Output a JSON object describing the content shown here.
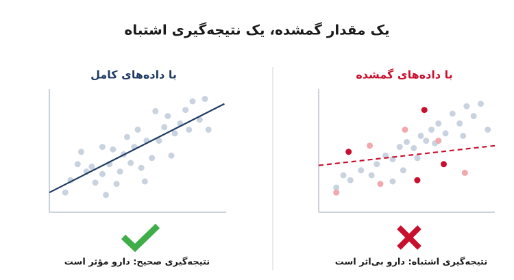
{
  "title": "یک مقدار گمشده، یک نتیجه‌گیری اشتباه",
  "chart_data": [
    {
      "type": "scatter",
      "title": "با داده‌های کامل",
      "xlim": [
        0,
        100
      ],
      "ylim": [
        0,
        100
      ],
      "series": [
        {
          "color": "#c9d3df",
          "x": [
            9,
            12,
            16,
            18,
            21,
            24,
            26,
            30,
            30,
            32,
            34,
            36,
            38,
            40,
            42,
            44,
            46,
            48,
            50,
            52,
            54,
            55,
            58,
            60,
            62,
            65,
            67,
            69,
            71,
            74,
            77,
            79,
            81,
            85,
            88,
            90
          ],
          "values": [
            16,
            26,
            39,
            49,
            33,
            37,
            24,
            53,
            31,
            14,
            39,
            51,
            23,
            33,
            47,
            61,
            40,
            53,
            67,
            36,
            25,
            58,
            44,
            82,
            58,
            69,
            78,
            46,
            64,
            72,
            83,
            67,
            90,
            75,
            92,
            67
          ]
        }
      ],
      "trend": {
        "color": "#1f3b63",
        "x": [
          0,
          99
        ],
        "values": [
          16,
          88
        ]
      },
      "caption": "نتیجه‌گیری صحیح: دارو مؤثر است"
    },
    {
      "type": "scatter",
      "title": "با داده‌های گمشده",
      "xlim": [
        0,
        100
      ],
      "ylim": [
        0,
        100
      ],
      "series": [
        {
          "color": "#c9d3df",
          "x": [
            10,
            14,
            18,
            24,
            30,
            33,
            38,
            42,
            46,
            50,
            54,
            58,
            61,
            64,
            68,
            72,
            76,
            80,
            84,
            88,
            92,
            96,
            42,
            48,
            56,
            66,
            82
          ],
          "values": [
            20,
            30,
            26,
            34,
            30,
            39,
            46,
            43,
            53,
            57,
            52,
            62,
            58,
            67,
            72,
            64,
            80,
            72,
            86,
            78,
            88,
            67,
            25,
            34,
            44,
            56,
            62
          ]
        },
        {
          "color": "#f2a9ae",
          "x": [
            10,
            29,
            35,
            49,
            68,
            83
          ],
          "values": [
            16,
            54,
            23,
            67,
            58,
            32
          ]
        },
        {
          "color": "#c8102e",
          "x": [
            17,
            60,
            56,
            71
          ],
          "values": [
            49,
            83,
            26,
            39
          ]
        }
      ],
      "trend": {
        "color": "#c8102e",
        "x": [
          0,
          100
        ],
        "values": [
          38,
          54
        ]
      },
      "caption": "نتیجه‌گیری اشتباه: دارو بی‌اثر است"
    }
  ]
}
